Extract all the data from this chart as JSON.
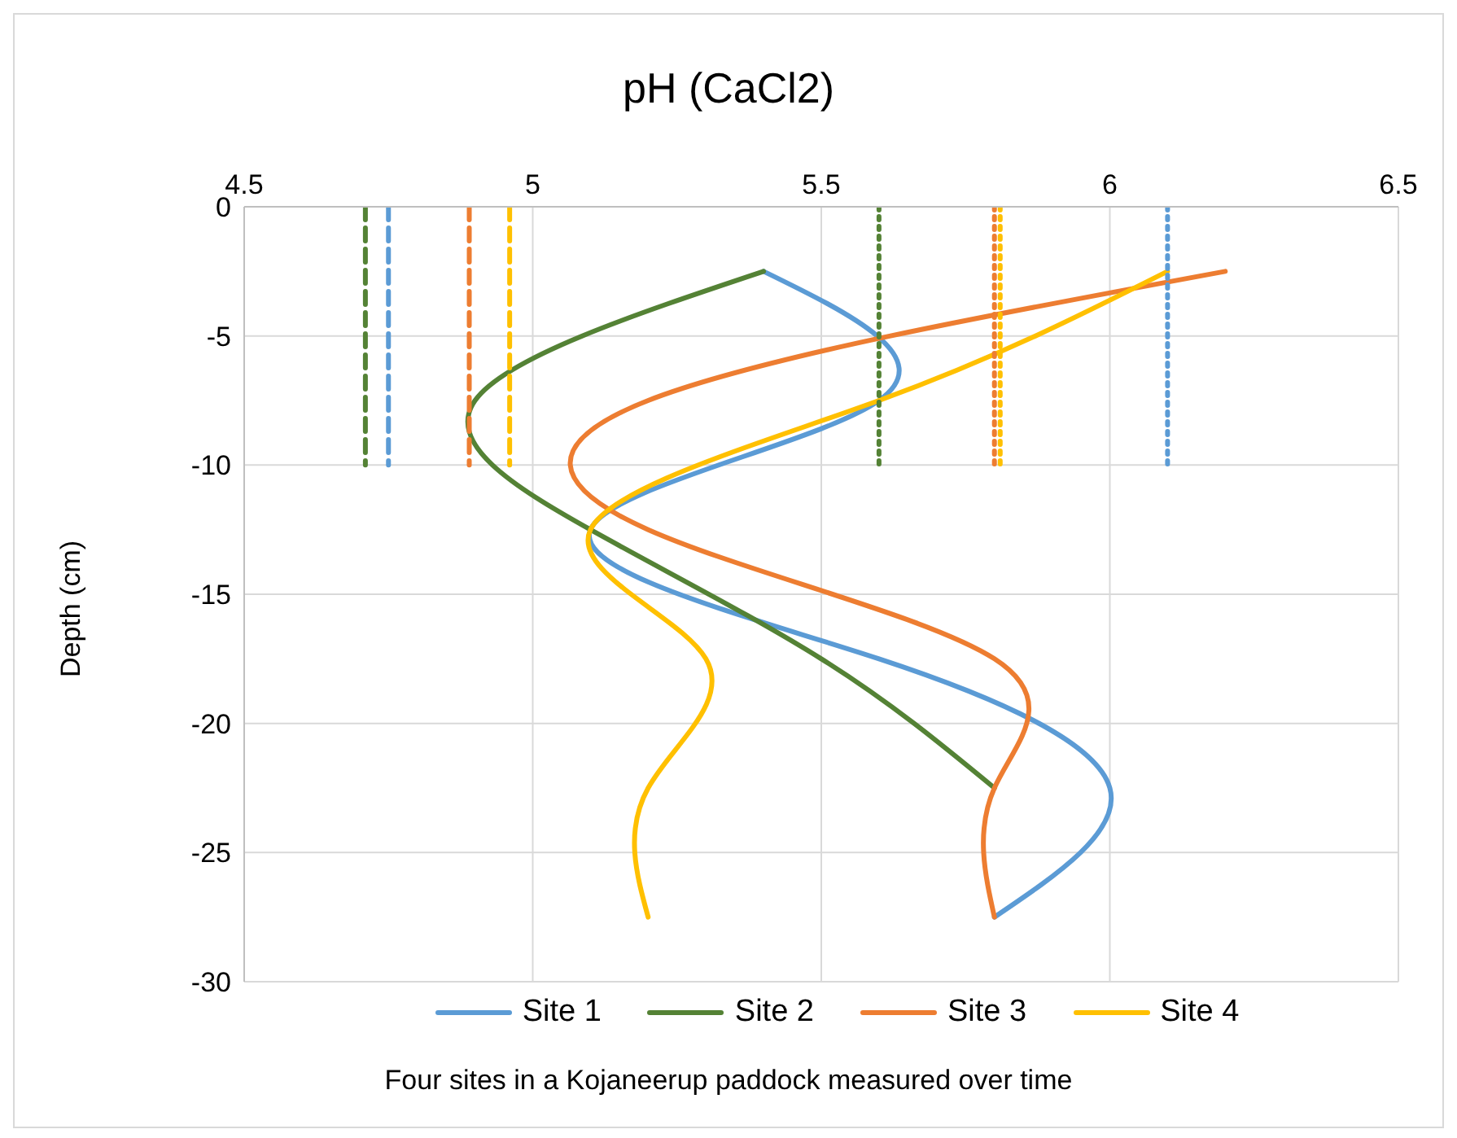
{
  "chart_data": {
    "type": "line",
    "xlabel": "pH (CaCl2)",
    "ylabel": "Depth (cm)",
    "xlim": [
      4.5,
      6.5
    ],
    "xticks": [
      4.5,
      5,
      5.5,
      6,
      6.5
    ],
    "ylim": [
      -30,
      0
    ],
    "yticks": [
      -30,
      -25,
      -20,
      -15,
      -10,
      -5,
      0
    ],
    "grid": true,
    "legend": "bottom",
    "marker": "none",
    "annotations": [
      "Four sites in a Kojaneerup paddock measured over time"
    ],
    "series": [
      {
        "name": "Site 1",
        "color": "#5b9bd5",
        "line_style": "solid",
        "x": [
          5.4,
          5.6,
          5.1,
          5.6,
          6.0,
          5.8
        ],
        "values": [
          -2.5,
          -7.5,
          -12.5,
          -17.5,
          -22.5,
          -27.5
        ]
      },
      {
        "name": "Site 2",
        "color": "#548235",
        "line_style": "solid",
        "x": [
          5.4,
          4.9,
          5.1,
          5.5,
          5.8
        ],
        "values": [
          -2.5,
          -7.5,
          -12.5,
          -17.5,
          -22.5
        ]
      },
      {
        "name": "Site 3",
        "color": "#ed7d31",
        "line_style": "solid",
        "x": [
          6.2,
          5.2,
          5.2,
          5.8,
          5.8,
          5.8
        ],
        "values": [
          -2.5,
          -7.5,
          -12.5,
          -17.5,
          -22.5,
          -27.5
        ]
      },
      {
        "name": "Site 4",
        "color": "#ffc000",
        "line_style": "solid",
        "x": [
          6.1,
          5.6,
          5.1,
          5.3,
          5.2,
          5.2
        ],
        "values": [
          -2.5,
          -7.5,
          -12.5,
          -17.5,
          -22.5,
          -27.5
        ]
      },
      {
        "color": "#548235",
        "line_style": "dashed",
        "x": [
          4.71,
          4.71
        ],
        "values": [
          0,
          -10
        ]
      },
      {
        "color": "#5b9bd5",
        "line_style": "dashed",
        "x": [
          4.75,
          4.75
        ],
        "values": [
          0,
          -10
        ]
      },
      {
        "color": "#ed7d31",
        "line_style": "dashed",
        "x": [
          4.89,
          4.89
        ],
        "values": [
          0,
          -10
        ]
      },
      {
        "color": "#ffc000",
        "line_style": "dashed",
        "x": [
          4.96,
          4.96
        ],
        "values": [
          0,
          -10
        ]
      },
      {
        "color": "#548235",
        "line_style": "dotted",
        "x": [
          5.6,
          5.6
        ],
        "values": [
          0,
          -10
        ]
      },
      {
        "color": "#ed7d31",
        "line_style": "dotted",
        "x": [
          5.8,
          5.8
        ],
        "values": [
          0,
          -10
        ]
      },
      {
        "color": "#ffc000",
        "line_style": "dotted",
        "x": [
          5.81,
          5.81
        ],
        "values": [
          0,
          -10
        ]
      },
      {
        "color": "#5b9bd5",
        "line_style": "dotted",
        "x": [
          6.1,
          6.1
        ],
        "values": [
          0,
          -10
        ]
      }
    ]
  }
}
